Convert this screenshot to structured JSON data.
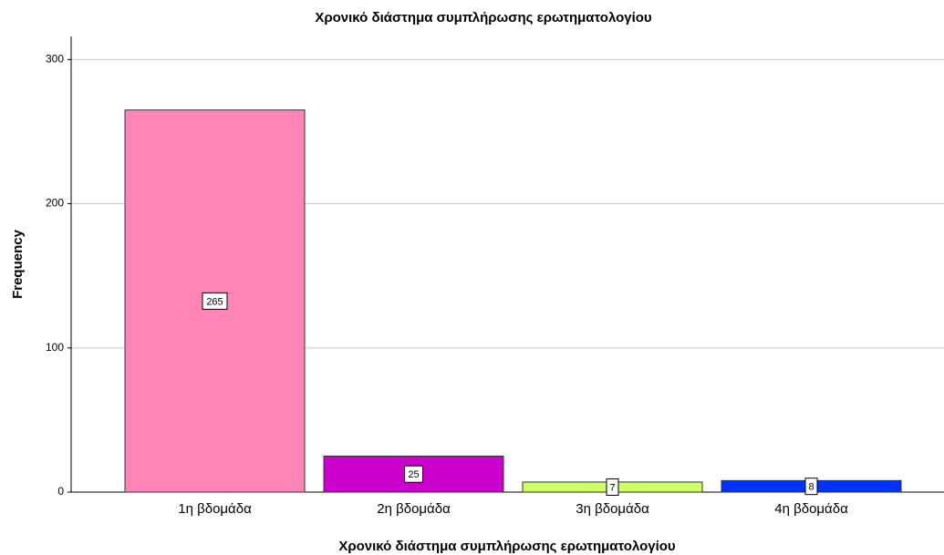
{
  "chart_data": {
    "type": "bar",
    "title": "Χρονικό διάστημα συμπλήρωσης ερωτηματολογίου",
    "x_label": "Χρονικό διάστημα συμπλήρωσης ερωτηματολογίου",
    "y_label": "Frequency",
    "categories": [
      "1η βδομάδα",
      "2η βδομάδα",
      "3η βδομάδα",
      "4η βδομάδα"
    ],
    "values": [
      265,
      25,
      7,
      8
    ],
    "colors": [
      "#ff85b8",
      "#cc00cc",
      "#ccff66",
      "#0033ff"
    ],
    "ylim": [
      0,
      316
    ],
    "yticks": [
      0,
      100,
      200,
      300
    ],
    "grid": true
  }
}
